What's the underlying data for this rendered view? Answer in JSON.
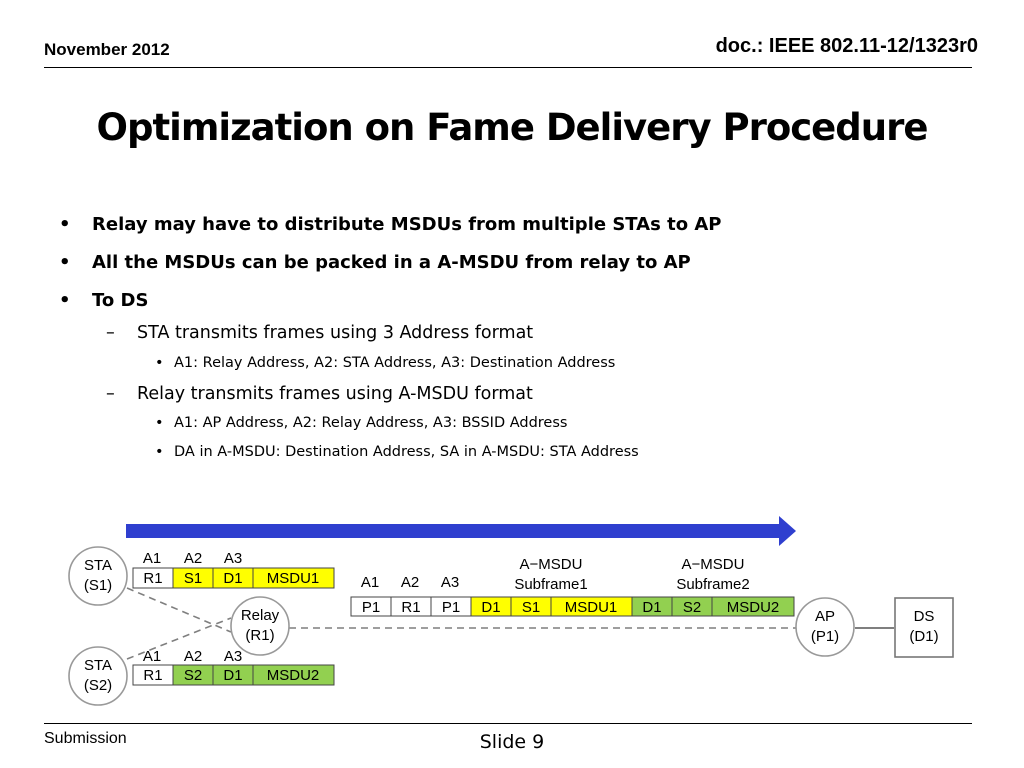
{
  "header": {
    "date": "November 2012",
    "doc": "doc.: IEEE 802.11-12/1323r0"
  },
  "title": "Optimization on Fame Delivery Procedure",
  "bullets": [
    "Relay may have to distribute MSDUs from  multiple STAs  to AP",
    "All the MSDUs can be packed in a A-MSDU from relay to AP",
    "To DS"
  ],
  "sub1": {
    "text": "STA transmits frames using 3 Address format",
    "items": [
      "A1: Relay Address, A2: STA Address, A3: Destination Address"
    ]
  },
  "sub2": {
    "text": "Relay transmits frames using A-MSDU format",
    "items": [
      "A1: AP Address, A2: Relay Address, A3: BSSID Address",
      "DA in A-MSDU: Destination Address, SA in A-MSDU: STA Address"
    ]
  },
  "diagram": {
    "colors": {
      "arrow": "#2f3fcf",
      "yellow": "#ffff00",
      "green": "#92d050"
    },
    "nodes": {
      "sta1": [
        "STA",
        "(S1)"
      ],
      "sta2": [
        "STA",
        "(S2)"
      ],
      "relay": [
        "Relay",
        "(R1)"
      ],
      "ap": [
        "AP",
        "(P1)"
      ],
      "ds": [
        "DS",
        "(D1)"
      ]
    },
    "addr_headers": [
      "A1",
      "A2",
      "A3"
    ],
    "frame1": [
      "R1",
      "S1",
      "D1",
      "MSDU1"
    ],
    "frame2": [
      "R1",
      "S2",
      "D1",
      "MSDU2"
    ],
    "amsdu_header": [
      "P1",
      "R1",
      "P1"
    ],
    "subframe1": {
      "label": [
        "A−MSDU",
        "Subframe1"
      ],
      "cells": [
        "D1",
        "S1",
        "MSDU1"
      ]
    },
    "subframe2": {
      "label": [
        "A−MSDU",
        "Subframe2"
      ],
      "cells": [
        "D1",
        "S2",
        "MSDU2"
      ]
    }
  },
  "footer": {
    "submission": "Submission",
    "slide": "Slide 9"
  }
}
